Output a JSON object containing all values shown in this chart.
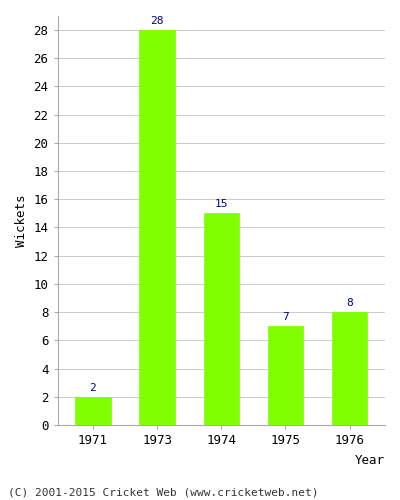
{
  "years": [
    "1971",
    "1973",
    "1974",
    "1975",
    "1976"
  ],
  "values": [
    2,
    28,
    15,
    7,
    8
  ],
  "bar_color": "#7FFF00",
  "bar_edgecolor": "#7FFF00",
  "ylabel": "Wickets",
  "year_label": "Year",
  "ylim": [
    0,
    29
  ],
  "yticks": [
    0,
    2,
    4,
    6,
    8,
    10,
    12,
    14,
    16,
    18,
    20,
    22,
    24,
    26,
    28
  ],
  "label_color": "#00008B",
  "label_fontsize": 8,
  "axis_label_fontsize": 9,
  "tick_fontsize": 9,
  "footer_text": "(C) 2001-2015 Cricket Web (www.cricketweb.net)",
  "footer_fontsize": 8,
  "background_color": "#ffffff",
  "grid_color": "#cccccc",
  "bar_width": 0.55
}
